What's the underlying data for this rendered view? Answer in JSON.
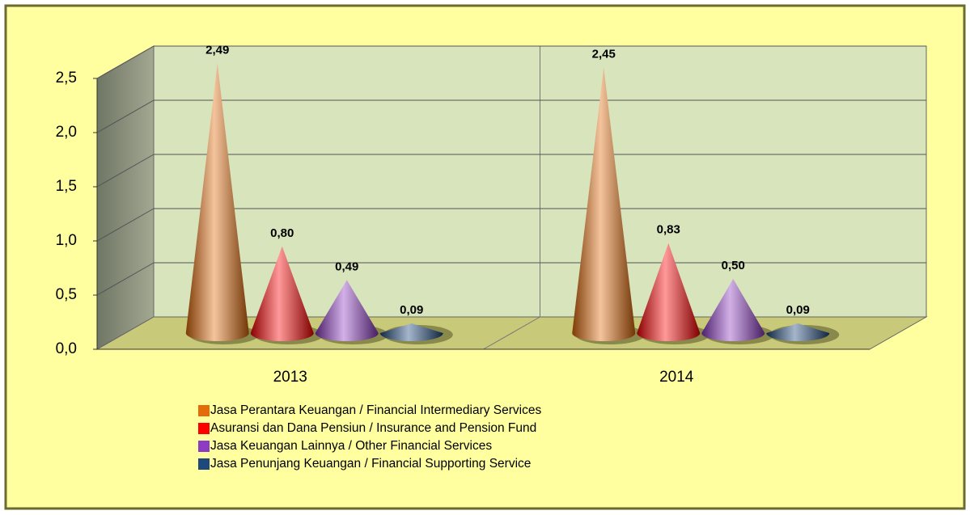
{
  "chart_data": {
    "type": "cone",
    "categories": [
      "2013",
      "2014"
    ],
    "series": [
      {
        "name": "Jasa Perantara Keuangan / Financial Intermediary Services",
        "color": "#e46c0a",
        "values": [
          2.49,
          2.45
        ],
        "value_labels": [
          "2,49",
          "2,45"
        ]
      },
      {
        "name": "Asuransi dan Dana Pensiun / Insurance and Pension Fund",
        "color": "#ff0000",
        "values": [
          0.8,
          0.83
        ],
        "value_labels": [
          "0,80",
          "0,83"
        ]
      },
      {
        "name": "Jasa Keuangan Lainnya / Other Financial Services",
        "color": "#8e3bc4",
        "values": [
          0.49,
          0.5
        ],
        "value_labels": [
          "0,49",
          "0,50"
        ]
      },
      {
        "name": "Jasa Penunjang Keuangan / Financial Supporting Service",
        "color": "#1f497d",
        "values": [
          0.09,
          0.09
        ],
        "value_labels": [
          "0,09",
          "0,09"
        ]
      }
    ],
    "ylim": [
      0,
      2.5
    ],
    "yticks": [
      {
        "value": 0,
        "label": "0,0"
      },
      {
        "value": 0.5,
        "label": "0,5"
      },
      {
        "value": 1.0,
        "label": "1,0"
      },
      {
        "value": 1.5,
        "label": "1,5"
      },
      {
        "value": 2.0,
        "label": "2,0"
      },
      {
        "value": 2.5,
        "label": "2,5"
      }
    ],
    "grid": true,
    "legend": "bottom"
  }
}
